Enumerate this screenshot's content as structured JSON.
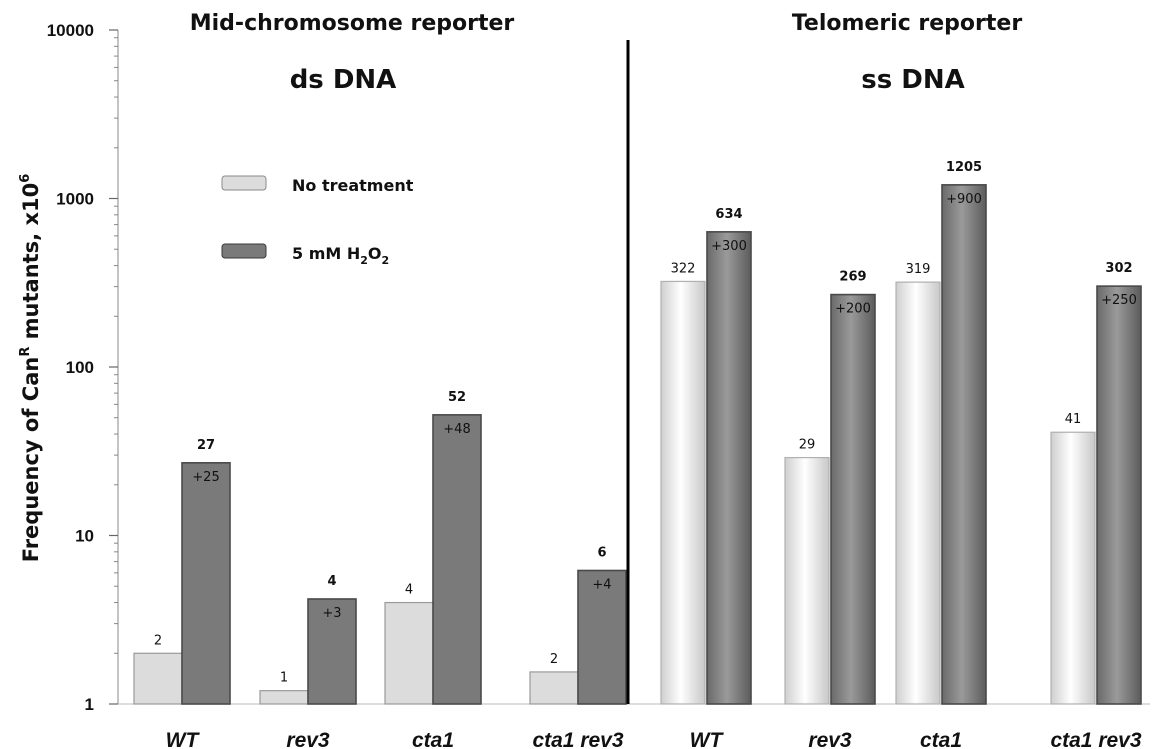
{
  "chart_data": {
    "type": "bar",
    "y_scale": "log",
    "ylim": [
      1,
      10000
    ],
    "y_ticks": [
      "1",
      "10",
      "100",
      "1000",
      "10000"
    ],
    "ylabel_parts": [
      "Frequency of Can",
      "R",
      " mutants, x10",
      "6"
    ],
    "legend": {
      "placement": "top-left",
      "entries": [
        {
          "label_parts": [
            "No treatment"
          ],
          "color": "#dcdcdc"
        },
        {
          "label_parts": [
            "5 mM H",
            "2",
            "O",
            "2"
          ],
          "color": "#7a7a7a"
        }
      ]
    },
    "panels": [
      {
        "title": "Mid-chromosome reporter",
        "subtitle": "ds DNA",
        "style": "flat",
        "categories": [
          "WT",
          "rev3",
          "cta1",
          "cta1 rev3"
        ],
        "no_treatment": [
          2,
          1.2,
          4,
          1.55
        ],
        "no_treatment_labels": [
          "2",
          "1",
          "4",
          "2"
        ],
        "h2o2": [
          27,
          4.2,
          52,
          6.2
        ],
        "h2o2_labels": [
          "27",
          "4",
          "52",
          "6"
        ],
        "increase_labels": [
          "+25",
          "+3",
          "+48",
          "+4"
        ]
      },
      {
        "title": "Telomeric reporter",
        "subtitle": "ss DNA",
        "style": "shaded",
        "categories": [
          "WT",
          "rev3",
          "cta1",
          "cta1 rev3"
        ],
        "no_treatment": [
          322,
          29,
          319,
          41
        ],
        "no_treatment_labels": [
          "322",
          "29",
          "319",
          "41"
        ],
        "h2o2": [
          634,
          269,
          1205,
          302
        ],
        "h2o2_labels": [
          "634",
          "269",
          "1205",
          "302"
        ],
        "increase_labels": [
          "+300",
          "+200",
          "+900",
          "+250"
        ]
      }
    ],
    "colors": {
      "no_treatment": "#dcdcdc",
      "h2o2": "#7a7a7a",
      "edge": "#4a4a4a"
    }
  }
}
